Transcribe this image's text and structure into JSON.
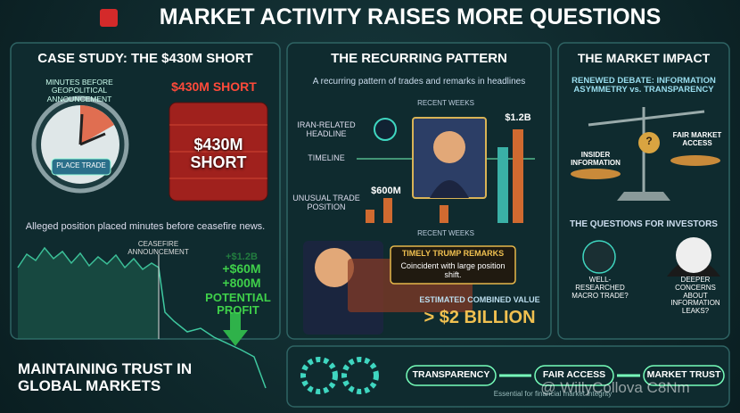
{
  "header": {
    "title": "MARKET ACTIVITY RAISES MORE QUESTIONS"
  },
  "case_study": {
    "title": "CASE STUDY: THE $430M SHORT",
    "clock_label": "MINUTES BEFORE GEOPOLITICAL ANNOUNCEMENT",
    "headline": "$430M SHORT",
    "button": "PLACE TRADE",
    "barrel_label": "$430M SHORT",
    "caption": "Alleged position placed minutes before ceasefire news.",
    "chart_label": "CEASEFIRE ANNOUNCEMENT",
    "profit_lines": [
      "+$1.2B",
      "+$60M",
      "+800M"
    ],
    "profit_label": "POTENTIAL PROFIT",
    "footer": "MAINTAINING TRUST IN GLOBAL MARKETS"
  },
  "pattern": {
    "title": "THE RECURRING PATTERN",
    "subtitle": "A recurring pattern of trades and remarks in headlines",
    "top_axis": "RECENT WEEKS",
    "row_labels": [
      "IRAN-RELATED HEADLINE",
      "TIMELINE",
      "UNUSUAL TRADE POSITION"
    ],
    "value_labels": [
      "$600M",
      "$1.2B"
    ],
    "bottom_axis": "RECENT WEEKS",
    "remarks_title": "TIMELY TRUMP REMARKS",
    "remarks_text": "Coincident with large position shift.",
    "combined_label": "ESTIMATED COMBINED VALUE",
    "combined_value": "> $2 BILLION"
  },
  "impact": {
    "title": "THE MARKET IMPACT",
    "debate": "RENEWED DEBATE: INFORMATION ASYMMETRY vs. TRANSPARENCY",
    "scale_left": "INSIDER INFORMATION",
    "scale_mid": "?",
    "scale_right": "FAIR MARKET ACCESS",
    "questions_title": "THE QUESTIONS FOR INVESTORS",
    "question_left": "WELL-RESEARCHED MACRO TRADE?",
    "question_right": "DEEPER CONCERNS ABOUT INFORMATION LEAKS?"
  },
  "footer_bar": {
    "pillars": [
      "TRANSPARENCY",
      "FAIR ACCESS",
      "MARKET TRUST"
    ],
    "tagline": "Essential for financial market integrity",
    "watermark": "@ WillyCollova C8Nm"
  }
}
